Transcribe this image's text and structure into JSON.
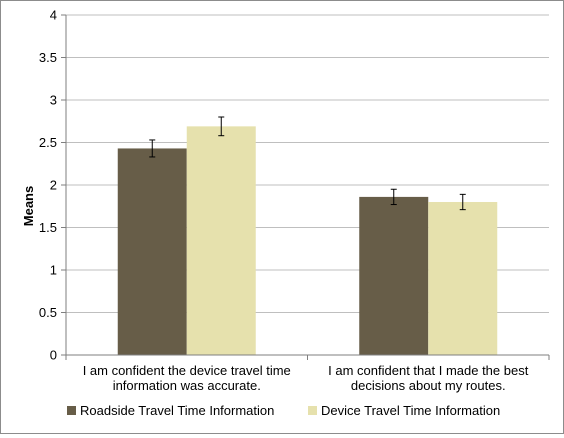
{
  "chart_data": {
    "type": "bar",
    "title": "",
    "xlabel": "",
    "ylabel": "Means",
    "ylim": [
      0,
      4
    ],
    "yticks": [
      "0",
      "0.5",
      "1",
      "1.5",
      "2",
      "2.5",
      "3",
      "3.5",
      "4"
    ],
    "grid": true,
    "legend_position": "bottom",
    "categories": [
      [
        "I am confident the device travel time",
        "information was accurate."
      ],
      [
        "I am confident that I made the best",
        "decisions about my routes."
      ]
    ],
    "series": [
      {
        "name": "Roadside Travel Time Information",
        "color": "#675d48",
        "values": [
          2.43,
          1.86
        ],
        "errors": [
          0.1,
          0.09
        ]
      },
      {
        "name": "Device Travel Time Information",
        "color": "#e6e1ad",
        "values": [
          2.69,
          1.8
        ],
        "errors": [
          0.11,
          0.09
        ]
      }
    ]
  }
}
